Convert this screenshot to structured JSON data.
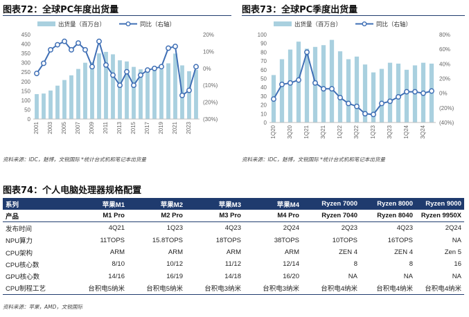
{
  "fig72": {
    "title": "图表72：全球PC年度出货量",
    "legend_bar": "出货量（百万台）",
    "legend_line": "同比（右轴）",
    "source": "资料来源：IDC，魅博，文锐国际 *统计台式机和笔记本出货量",
    "chart_data": {
      "type": "bar+line",
      "x": [
        "2001",
        "2002",
        "2003",
        "2004",
        "2005",
        "2006",
        "2007",
        "2008",
        "2009",
        "2010",
        "2011",
        "2012",
        "2013",
        "2014",
        "2015",
        "2016",
        "2017",
        "2018",
        "2019",
        "2020",
        "2021",
        "2022",
        "2023",
        "2024"
      ],
      "x_tick_labels": [
        "2001",
        "2003",
        "2005",
        "2007",
        "2009",
        "2011",
        "2013",
        "2015",
        "2017",
        "2019",
        "2021",
        "2023"
      ],
      "series": [
        {
          "name": "出货量（百万台）",
          "axis": "left",
          "type": "bar",
          "values": [
            133,
            136,
            152,
            178,
            208,
            233,
            267,
            300,
            303,
            350,
            358,
            345,
            313,
            307,
            278,
            265,
            262,
            261,
            265,
            297,
            349,
            286,
            255,
            262
          ]
        },
        {
          "name": "同比（右轴）",
          "axis": "right",
          "type": "line",
          "values": [
            -3,
            3,
            11,
            14,
            16,
            11,
            15,
            11,
            1,
            16,
            2,
            -4,
            -10,
            -2,
            -10,
            -4,
            -1,
            0,
            1,
            12,
            13,
            -16,
            -13,
            1
          ]
        }
      ],
      "left_axis": {
        "ylim": [
          0,
          450
        ],
        "ticks": [
          0,
          50,
          100,
          150,
          200,
          250,
          300,
          350,
          400,
          450
        ],
        "tick_labels": [
          "0",
          "50",
          "100",
          "150",
          "200",
          "250",
          "300",
          "350",
          "400",
          "450"
        ]
      },
      "right_axis": {
        "ylim": [
          -30,
          20
        ],
        "ticks": [
          20,
          10,
          0,
          -10,
          -20,
          -30
        ],
        "tick_labels": [
          "20%",
          "10%",
          "0%",
          "(10%)",
          "(20%)",
          "(30%)"
        ]
      }
    }
  },
  "fig73": {
    "title": "图表73：全球PC季度出货量",
    "legend_bar": "出货量（百万台）",
    "legend_line": "同比（右轴）",
    "source": "资料来源：IDC，魅博，文锐国际 *统计台式机和笔记本出货量",
    "chart_data": {
      "type": "bar+line",
      "x": [
        "1Q20",
        "2Q20",
        "3Q20",
        "4Q20",
        "1Q21",
        "2Q21",
        "3Q21",
        "4Q21",
        "1Q22",
        "2Q22",
        "3Q22",
        "4Q22",
        "1Q23",
        "2Q23",
        "3Q23",
        "4Q23",
        "1Q24",
        "2Q24",
        "3Q24",
        "4Q24"
      ],
      "x_tick_labels": [
        "1Q20",
        "3Q20",
        "1Q21",
        "3Q21",
        "1Q22",
        "3Q22",
        "1Q23",
        "3Q23",
        "1Q24",
        "3Q24"
      ],
      "series": [
        {
          "name": "出货量（百万台）",
          "axis": "left",
          "type": "bar",
          "values": [
            54,
            72,
            83,
            92,
            84,
            86,
            88,
            94,
            81,
            72,
            75,
            66,
            57,
            61,
            68,
            67,
            60,
            65,
            68,
            67
          ]
        },
        {
          "name": "同比（右轴）",
          "axis": "right",
          "type": "line",
          "values": [
            -8,
            12,
            14,
            18,
            56,
            14,
            6,
            6,
            -6,
            -14,
            -18,
            -28,
            -29,
            -14,
            -11,
            -5,
            2,
            2,
            0,
            3
          ]
        }
      ],
      "left_axis": {
        "ylim": [
          0,
          100
        ],
        "ticks": [
          0,
          10,
          20,
          30,
          40,
          50,
          60,
          70,
          80,
          90,
          100
        ],
        "tick_labels": [
          "0",
          "10",
          "20",
          "30",
          "40",
          "50",
          "60",
          "70",
          "80",
          "90",
          "100"
        ]
      },
      "right_axis": {
        "ylim": [
          -40,
          80
        ],
        "ticks": [
          80,
          60,
          40,
          20,
          0,
          -20,
          -40
        ],
        "tick_labels": [
          "80%",
          "60%",
          "40%",
          "20%",
          "0%",
          "(20%)",
          "(40%)"
        ]
      }
    }
  },
  "fig74": {
    "title": "图表74：个人电脑处理器规格配置",
    "source": "资料来源：苹果，AMD，文锐国际",
    "header": [
      "系列",
      "苹果M1",
      "苹果M2",
      "苹果M3",
      "苹果M4",
      "Ryzen 7000",
      "Ryzen 8000",
      "Ryzen 9000"
    ],
    "subheader": [
      "产品",
      "M1 Pro",
      "M2 Pro",
      "M3 Pro",
      "M4 Pro",
      "Ryzen 7040",
      "Ryzen 8040",
      "Ryzen 9950X"
    ],
    "rows": [
      [
        "发布时间",
        "4Q21",
        "1Q23",
        "4Q23",
        "2Q24",
        "2Q23",
        "4Q23",
        "2Q24"
      ],
      [
        "NPU算力",
        "11TOPS",
        "15.8TOPS",
        "18TOPS",
        "38TOPS",
        "10TOPS",
        "16TOPS",
        "NA"
      ],
      [
        "CPU架构",
        "ARM",
        "ARM",
        "ARM",
        "ARM",
        "ZEN 4",
        "ZEN 4",
        "Zen 5"
      ],
      [
        "CPU核心数",
        "8/10",
        "10/12",
        "11/12",
        "12/14",
        "8",
        "8",
        "16"
      ],
      [
        "GPU核心数",
        "14/16",
        "16/19",
        "14/18",
        "16/20",
        "NA",
        "NA",
        "NA"
      ],
      [
        "CPU制程工艺",
        "台积电5纳米",
        "台积电5纳米",
        "台积电3纳米",
        "台积电3纳米",
        "台积电4纳米",
        "台积电4纳米",
        "台积电4纳米"
      ]
    ]
  },
  "colors": {
    "bar": "#a9d0df",
    "line": "#3f6fb5",
    "marker_fill": "#ffffff",
    "header_bg": "#1f3b6e",
    "rule": "#1f3b6e",
    "axis_text": "#666666"
  }
}
